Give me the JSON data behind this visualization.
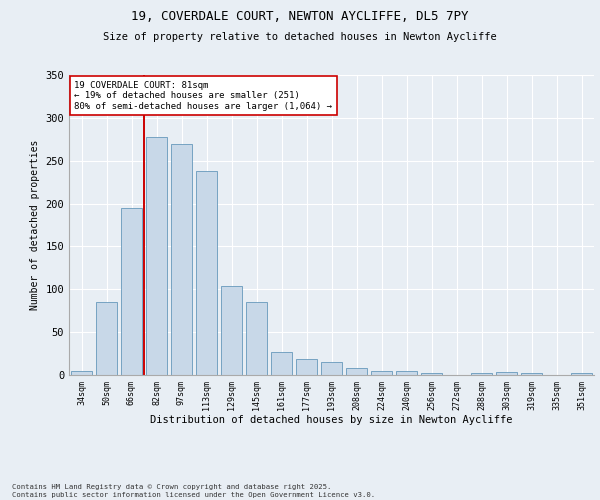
{
  "title1": "19, COVERDALE COURT, NEWTON AYCLIFFE, DL5 7PY",
  "title2": "Size of property relative to detached houses in Newton Aycliffe",
  "xlabel": "Distribution of detached houses by size in Newton Aycliffe",
  "ylabel": "Number of detached properties",
  "categories": [
    "34sqm",
    "50sqm",
    "66sqm",
    "82sqm",
    "97sqm",
    "113sqm",
    "129sqm",
    "145sqm",
    "161sqm",
    "177sqm",
    "193sqm",
    "208sqm",
    "224sqm",
    "240sqm",
    "256sqm",
    "272sqm",
    "288sqm",
    "303sqm",
    "319sqm",
    "335sqm",
    "351sqm"
  ],
  "values": [
    5,
    85,
    195,
    278,
    270,
    238,
    104,
    85,
    27,
    19,
    15,
    8,
    5,
    5,
    2,
    0,
    2,
    3,
    2,
    0,
    2
  ],
  "bar_color": "#c8d8e8",
  "bar_edge_color": "#6699bb",
  "vline_index": 2.5,
  "vline_color": "#cc0000",
  "annotation_text": "19 COVERDALE COURT: 81sqm\n← 19% of detached houses are smaller (251)\n80% of semi-detached houses are larger (1,064) →",
  "annotation_box_color": "#ffffff",
  "annotation_box_edge": "#cc0000",
  "background_color": "#e8eef4",
  "plot_bg_color": "#e8eef4",
  "footer_text": "Contains HM Land Registry data © Crown copyright and database right 2025.\nContains public sector information licensed under the Open Government Licence v3.0.",
  "ylim": [
    0,
    350
  ],
  "yticks": [
    0,
    50,
    100,
    150,
    200,
    250,
    300,
    350
  ]
}
